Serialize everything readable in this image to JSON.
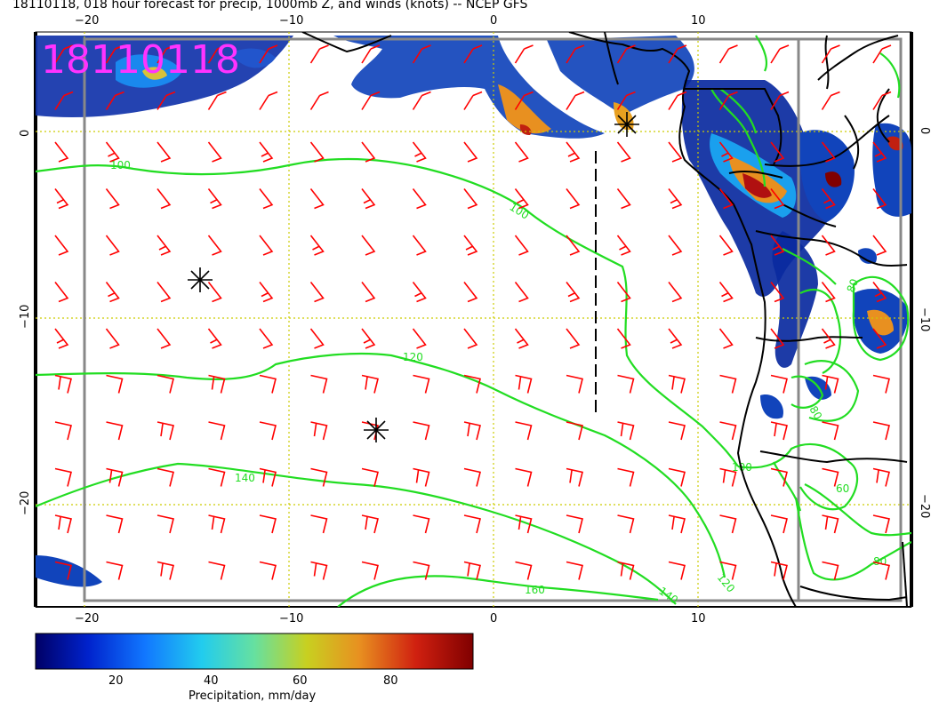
{
  "header": {
    "title": "18110118, 018 hour forecast for precip, 1000mb Z, and winds (knots) -- NCEP GFS"
  },
  "stamp": "18110118",
  "axes": {
    "lon_ticks": [
      "−20",
      "−10",
      "0",
      "10"
    ],
    "lat_ticks": [
      "0",
      "−10",
      "−20"
    ]
  },
  "contours": {
    "labels": [
      "100",
      "100",
      "120",
      "140",
      "160",
      "140",
      "120",
      "100",
      "80",
      "60",
      "80",
      "80"
    ]
  },
  "colorbar": {
    "label": "Precipitation, mm/day",
    "ticks": [
      "20",
      "40",
      "60",
      "80"
    ],
    "colors": [
      "#000066",
      "#0022cc",
      "#1177ff",
      "#22ccee",
      "#66e0a0",
      "#c8d020",
      "#e89020",
      "#d02010",
      "#800000"
    ]
  },
  "colors": {
    "barb": "#ff0000",
    "contour": "#00ee00",
    "grid": "#cccc00",
    "stamp": "#ff33ff",
    "coast": "#000000"
  }
}
